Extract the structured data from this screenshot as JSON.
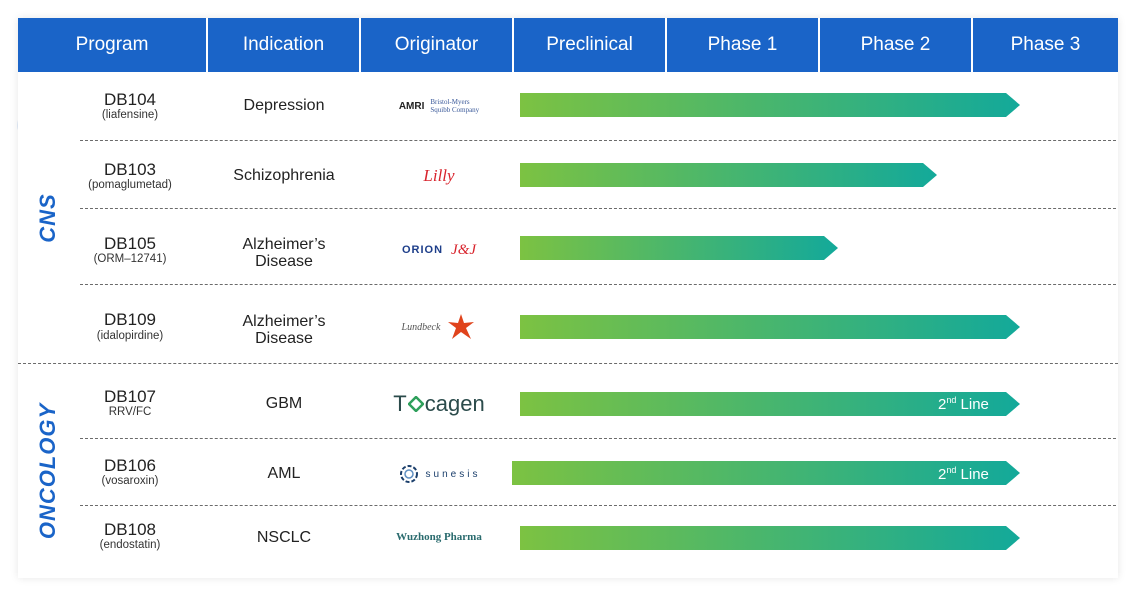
{
  "header": {
    "columns": [
      "Program",
      "Indication",
      "Originator",
      "Preclinical",
      "Phase 1",
      "Phase 2",
      "Phase 3"
    ]
  },
  "groups": [
    {
      "label": "CNS",
      "rows": [
        0,
        1,
        2,
        3
      ]
    },
    {
      "label": "ONCOLOGY",
      "rows": [
        4,
        5,
        6
      ]
    }
  ],
  "rows": [
    {
      "program": "DB104",
      "sub": "(liafensine)",
      "indication": [
        "Depression"
      ],
      "originator": "AMRI / Bristol-Myers Squibb Company",
      "originator_text": [
        "AMRI",
        "Bristol-Myers",
        "Squibb Company"
      ],
      "stage": "Phase 3",
      "note": ""
    },
    {
      "program": "DB103",
      "sub": "(pomaglumetad)",
      "indication": [
        "Schizophrenia"
      ],
      "originator": "Lilly",
      "originator_text": [
        "Lilly"
      ],
      "stage": "Phase 2",
      "note": ""
    },
    {
      "program": "DB105",
      "sub": "(ORM–12741)",
      "indication": [
        "Alzheimer’s",
        "Disease"
      ],
      "originator": "ORION / J&J",
      "originator_text": [
        "ORION",
        "J&J"
      ],
      "stage": "Phase 1",
      "note": ""
    },
    {
      "program": "DB109",
      "sub": "(idalopirdine)",
      "indication": [
        "Alzheimer’s",
        "Disease"
      ],
      "originator": "Lundbeck",
      "originator_text": [
        "Lundbeck"
      ],
      "stage": "Phase 3",
      "note": ""
    },
    {
      "program": "DB107",
      "sub": "RRV/FC",
      "indication": [
        "GBM"
      ],
      "originator": "Tocagen",
      "originator_text": [
        "T",
        "cagen"
      ],
      "stage": "Phase 3",
      "note": "2nd Line"
    },
    {
      "program": "DB106",
      "sub": "(vosaroxin)",
      "indication": [
        "AML"
      ],
      "originator": "Sunesis",
      "originator_text": [
        "sunesis"
      ],
      "stage": "Phase 3",
      "note": "2nd Line"
    },
    {
      "program": "DB108",
      "sub": "(endostatin)",
      "indication": [
        "NSCLC"
      ],
      "originator": "Wuzhong Pharma",
      "originator_text": [
        "Wuzhong Pharma"
      ],
      "stage": "Phase 3",
      "note": ""
    }
  ],
  "chart_data": {
    "type": "bar",
    "orientation": "horizontal",
    "stages": [
      "Preclinical",
      "Phase 1",
      "Phase 2",
      "Phase 3"
    ],
    "categories": [
      "DB104",
      "DB103",
      "DB105",
      "DB109",
      "DB107",
      "DB106",
      "DB108"
    ],
    "values": [
      4,
      3,
      2,
      4,
      4,
      4,
      4
    ],
    "annotations": [
      "",
      "",
      "",
      "",
      "2nd Line",
      "2nd Line",
      ""
    ],
    "legend": "none",
    "grid": false
  },
  "colors": {
    "header": "#1a64c8",
    "bar_start": "#7cc242",
    "bar_end": "#13a99a",
    "group_label": "#1a64c8",
    "lilly": "#d8242d",
    "orion": "#1d3e8a",
    "jnj": "#d8242d",
    "lundbeck_star": "#e0431c",
    "tocagen": "#2b4b4b",
    "tocagen_accent": "#2e9f5b",
    "sunesis": "#1a3e6b",
    "wuzhong": "#2a6b6e"
  }
}
